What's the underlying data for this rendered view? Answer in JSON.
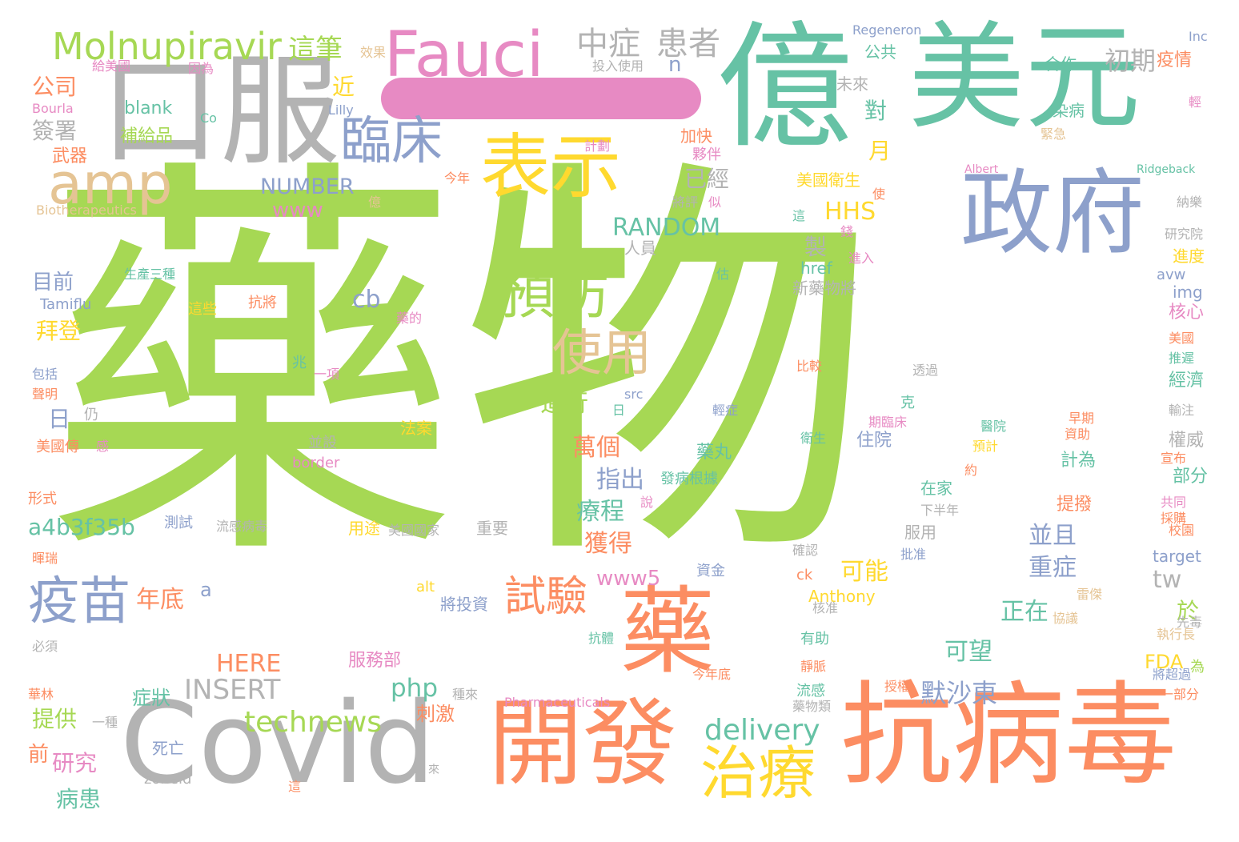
{
  "palette": {
    "green": "#a6d854",
    "teal": "#66c2a5",
    "orange": "#fc8d62",
    "blue": "#8da0cb",
    "pink": "#e78ac3",
    "yellow": "#ffd92f",
    "tan": "#e5c494",
    "gray": "#b3b3b3"
  },
  "dash": {
    "text": "",
    "color": "#e78ac3"
  },
  "words": [
    {
      "text": "藥物",
      "color": "#a6d854"
    },
    {
      "text": "億",
      "color": "#66c2a5"
    },
    {
      "text": "美元",
      "color": "#66c2a5"
    },
    {
      "text": "口服",
      "color": "#b3b3b3"
    },
    {
      "text": "Covid",
      "color": "#b3b3b3"
    },
    {
      "text": "抗病毒",
      "color": "#fc8d62"
    },
    {
      "text": "開發",
      "color": "#fc8d62"
    },
    {
      "text": "藥",
      "color": "#fc8d62"
    },
    {
      "text": "政府",
      "color": "#8da0cb"
    },
    {
      "text": "表示",
      "color": "#ffd92f"
    },
    {
      "text": "Fauci",
      "color": "#e78ac3"
    },
    {
      "text": "amp",
      "color": "#e5c494"
    },
    {
      "text": "Molnupiravir",
      "color": "#a6d854"
    },
    {
      "text": "臨床",
      "color": "#8da0cb"
    },
    {
      "text": "預防",
      "color": "#a6d854"
    },
    {
      "text": "治療",
      "color": "#ffd92f"
    },
    {
      "text": "疫苗",
      "color": "#8da0cb"
    },
    {
      "text": "使用",
      "color": "#e5c494"
    },
    {
      "text": "試驗",
      "color": "#fc8d62"
    },
    {
      "text": "中症",
      "color": "#b3b3b3"
    },
    {
      "text": "患者",
      "color": "#b3b3b3"
    },
    {
      "text": "technews",
      "color": "#a6d854"
    },
    {
      "text": "delivery",
      "color": "#66c2a5"
    },
    {
      "text": "INSERT",
      "color": "#b3b3b3"
    },
    {
      "text": "RANDOM",
      "color": "#66c2a5"
    },
    {
      "text": "NUMBER",
      "color": "#8da0cb"
    },
    {
      "text": "HHS",
      "color": "#ffd92f"
    },
    {
      "text": "a4b3f35b",
      "color": "#66c2a5"
    },
    {
      "text": "www5",
      "color": "#e78ac3"
    },
    {
      "text": "www",
      "color": "#e78ac3"
    },
    {
      "text": "php",
      "color": "#66c2a5"
    },
    {
      "text": "HERE",
      "color": "#fc8d62"
    },
    {
      "text": "FDA",
      "color": "#ffd92f"
    },
    {
      "text": "默沙東",
      "color": "#8da0cb"
    },
    {
      "text": "這筆",
      "color": "#a6d854"
    },
    {
      "text": "初期",
      "color": "#b3b3b3"
    },
    {
      "text": "疫情",
      "color": "#fc8d62"
    },
    {
      "text": "公司",
      "color": "#fc8d62"
    },
    {
      "text": "簽署",
      "color": "#b3b3b3"
    },
    {
      "text": "武器",
      "color": "#fc8d62"
    },
    {
      "text": "blank",
      "color": "#66c2a5"
    },
    {
      "text": "補給品",
      "color": "#a6d854"
    },
    {
      "text": "目前",
      "color": "#8da0cb"
    },
    {
      "text": "拜登",
      "color": "#ffd92f"
    },
    {
      "text": "日",
      "color": "#8da0cb"
    },
    {
      "text": "cb",
      "color": "#8da0cb"
    },
    {
      "text": "進行",
      "color": "#a6d854"
    },
    {
      "text": "萬個",
      "color": "#fc8d62"
    },
    {
      "text": "指出",
      "color": "#8da0cb"
    },
    {
      "text": "療程",
      "color": "#66c2a5"
    },
    {
      "text": "獲得",
      "color": "#fc8d62"
    },
    {
      "text": "年底",
      "color": "#fc8d62"
    },
    {
      "text": "可能",
      "color": "#ffd92f"
    },
    {
      "text": "並且",
      "color": "#8da0cb"
    },
    {
      "text": "重症",
      "color": "#8da0cb"
    },
    {
      "text": "正在",
      "color": "#66c2a5"
    },
    {
      "text": "可望",
      "color": "#66c2a5"
    },
    {
      "text": "tw",
      "color": "#b3b3b3"
    },
    {
      "text": "於",
      "color": "#a6d854"
    },
    {
      "text": "已經",
      "color": "#b3b3b3"
    },
    {
      "text": "月",
      "color": "#ffd92f"
    },
    {
      "text": "對",
      "color": "#66c2a5"
    },
    {
      "text": "製",
      "color": "#b3b3b3"
    },
    {
      "text": "提供",
      "color": "#a6d854"
    },
    {
      "text": "研究",
      "color": "#e78ac3"
    },
    {
      "text": "病患",
      "color": "#66c2a5"
    },
    {
      "text": "前",
      "color": "#fc8d62"
    },
    {
      "text": "症狀",
      "color": "#66c2a5"
    },
    {
      "text": "刺激",
      "color": "#fc8d62"
    },
    {
      "text": "服務部",
      "color": "#e78ac3"
    },
    {
      "text": "藥丸",
      "color": "#66c2a5"
    },
    {
      "text": "住院",
      "color": "#8da0cb"
    },
    {
      "text": "計為",
      "color": "#66c2a5"
    },
    {
      "text": "部分",
      "color": "#66c2a5"
    },
    {
      "text": "權威",
      "color": "#b3b3b3"
    },
    {
      "text": "經濟",
      "color": "#66c2a5"
    },
    {
      "text": "核心",
      "color": "#e78ac3"
    },
    {
      "text": "進度",
      "color": "#ffd92f"
    },
    {
      "text": "img",
      "color": "#8da0cb"
    },
    {
      "text": "avw",
      "color": "#8da0cb"
    },
    {
      "text": "target",
      "color": "#8da0cb"
    },
    {
      "text": "Anthony",
      "color": "#ffd92f"
    },
    {
      "text": "href",
      "color": "#66c2a5"
    },
    {
      "text": "新藥物將",
      "color": "#b3b3b3"
    },
    {
      "text": "美國衛生",
      "color": "#ffd92f"
    },
    {
      "text": "人員",
      "color": "#b3b3b3"
    },
    {
      "text": "公共",
      "color": "#66c2a5"
    },
    {
      "text": "未來",
      "color": "#b3b3b3"
    },
    {
      "text": "合作",
      "color": "#66c2a5"
    },
    {
      "text": "染病",
      "color": "#66c2a5"
    },
    {
      "text": "加快",
      "color": "#fc8d62"
    },
    {
      "text": "夥伴",
      "color": "#e78ac3"
    },
    {
      "text": "近",
      "color": "#ffd92f"
    },
    {
      "text": "n",
      "color": "#8da0cb"
    },
    {
      "text": "投入使用",
      "color": "#b3b3b3"
    },
    {
      "text": "Regeneron",
      "color": "#8da0cb"
    },
    {
      "text": "Inc",
      "color": "#8da0cb"
    },
    {
      "text": "效果",
      "color": "#e5c494"
    },
    {
      "text": "給美國",
      "color": "#e78ac3"
    },
    {
      "text": "因為",
      "color": "#e78ac3"
    },
    {
      "text": "Bourla",
      "color": "#e78ac3"
    },
    {
      "text": "Co",
      "color": "#66c2a5"
    },
    {
      "text": "Lilly",
      "color": "#8da0cb"
    },
    {
      "text": "計劃",
      "color": "#e78ac3"
    },
    {
      "text": "緊急",
      "color": "#e5c494"
    },
    {
      "text": "輕",
      "color": "#e78ac3"
    },
    {
      "text": "Biotherapeutics",
      "color": "#e5c494"
    },
    {
      "text": "今年",
      "color": "#fc8d62"
    },
    {
      "text": "Albert",
      "color": "#e78ac3"
    },
    {
      "text": "Ridgeback",
      "color": "#66c2a5"
    },
    {
      "text": "將評",
      "color": "#b3b3b3"
    },
    {
      "text": "似",
      "color": "#e78ac3"
    },
    {
      "text": "億",
      "color": "#e5c494"
    },
    {
      "text": "這",
      "color": "#66c2a5"
    },
    {
      "text": "錢",
      "color": "#e78ac3"
    },
    {
      "text": "使",
      "color": "#fc8d62"
    },
    {
      "text": "研究院",
      "color": "#b3b3b3"
    },
    {
      "text": "納樂",
      "color": "#b3b3b3"
    },
    {
      "text": "進入",
      "color": "#e78ac3"
    },
    {
      "text": "生產三種",
      "color": "#66c2a5"
    },
    {
      "text": "估",
      "color": "#66c2a5"
    },
    {
      "text": "Tamiflu",
      "color": "#8da0cb"
    },
    {
      "text": "抗將",
      "color": "#fc8d62"
    },
    {
      "text": "這些",
      "color": "#ffd92f"
    },
    {
      "text": "藥的",
      "color": "#e78ac3"
    },
    {
      "text": "包括",
      "color": "#8da0cb"
    },
    {
      "text": "兆",
      "color": "#66c2a5"
    },
    {
      "text": "一項",
      "color": "#e78ac3"
    },
    {
      "text": "比較",
      "color": "#fc8d62"
    },
    {
      "text": "透過",
      "color": "#b3b3b3"
    },
    {
      "text": "美國",
      "color": "#fc8d62"
    },
    {
      "text": "推遲",
      "color": "#66c2a5"
    },
    {
      "text": "聲明",
      "color": "#fc8d62"
    },
    {
      "text": "仍",
      "color": "#b3b3b3"
    },
    {
      "text": "src",
      "color": "#8da0cb"
    },
    {
      "text": "日",
      "color": "#66c2a5"
    },
    {
      "text": "輕症",
      "color": "#8da0cb"
    },
    {
      "text": "克",
      "color": "#66c2a5"
    },
    {
      "text": "期臨床",
      "color": "#e78ac3"
    },
    {
      "text": "醫院",
      "color": "#66c2a5"
    },
    {
      "text": "早期",
      "color": "#fc8d62"
    },
    {
      "text": "輸注",
      "color": "#b3b3b3"
    },
    {
      "text": "資助",
      "color": "#fc8d62"
    },
    {
      "text": "美國傳",
      "color": "#fc8d62"
    },
    {
      "text": "感",
      "color": "#e78ac3"
    },
    {
      "text": "法案",
      "color": "#ffd92f"
    },
    {
      "text": "並設",
      "color": "#b3b3b3"
    },
    {
      "text": "border",
      "color": "#e78ac3"
    },
    {
      "text": "衛生",
      "color": "#66c2a5"
    },
    {
      "text": "預計",
      "color": "#ffd92f"
    },
    {
      "text": "宣布",
      "color": "#fc8d62"
    },
    {
      "text": "約",
      "color": "#fc8d62"
    },
    {
      "text": "形式",
      "color": "#fc8d62"
    },
    {
      "text": "測試",
      "color": "#8da0cb"
    },
    {
      "text": "流感病毒",
      "color": "#b3b3b3"
    },
    {
      "text": "發病根據",
      "color": "#66c2a5"
    },
    {
      "text": "說",
      "color": "#e78ac3"
    },
    {
      "text": "在家",
      "color": "#66c2a5"
    },
    {
      "text": "提撥",
      "color": "#fc8d62"
    },
    {
      "text": "共同",
      "color": "#e78ac3"
    },
    {
      "text": "採購",
      "color": "#fc8d62"
    },
    {
      "text": "用途",
      "color": "#ffd92f"
    },
    {
      "text": "美國國家",
      "color": "#b3b3b3"
    },
    {
      "text": "重要",
      "color": "#b3b3b3"
    },
    {
      "text": "下半年",
      "color": "#b3b3b3"
    },
    {
      "text": "服用",
      "color": "#b3b3b3"
    },
    {
      "text": "暉瑞",
      "color": "#fc8d62"
    },
    {
      "text": "確認",
      "color": "#b3b3b3"
    },
    {
      "text": "批准",
      "color": "#8da0cb"
    },
    {
      "text": "校園",
      "color": "#fc8d62"
    },
    {
      "text": "資金",
      "color": "#8da0cb"
    },
    {
      "text": "a",
      "color": "#8da0cb"
    },
    {
      "text": "ck",
      "color": "#fc8d62"
    },
    {
      "text": "alt",
      "color": "#ffd92f"
    },
    {
      "text": "將投資",
      "color": "#8da0cb"
    },
    {
      "text": "核准",
      "color": "#b3b3b3"
    },
    {
      "text": "雷傑",
      "color": "#e5c494"
    },
    {
      "text": "協議",
      "color": "#e5c494"
    },
    {
      "text": "先毒",
      "color": "#b3b3b3"
    },
    {
      "text": "執行長",
      "color": "#e5c494"
    },
    {
      "text": "必須",
      "color": "#b3b3b3"
    },
    {
      "text": "抗體",
      "color": "#66c2a5"
    },
    {
      "text": "有助",
      "color": "#66c2a5"
    },
    {
      "text": "靜脈",
      "color": "#fc8d62"
    },
    {
      "text": "為",
      "color": "#a6d854"
    },
    {
      "text": "華林",
      "color": "#fc8d62"
    },
    {
      "text": "流感",
      "color": "#66c2a5"
    },
    {
      "text": "藥物類",
      "color": "#b3b3b3"
    },
    {
      "text": "授權",
      "color": "#fc8d62"
    },
    {
      "text": "將超過",
      "color": "#8da0cb"
    },
    {
      "text": "一部分",
      "color": "#fc8d62"
    },
    {
      "text": "今年底",
      "color": "#fc8d62"
    },
    {
      "text": "種來",
      "color": "#b3b3b3"
    },
    {
      "text": "Pharmaceuticals",
      "color": "#e78ac3"
    },
    {
      "text": "一種",
      "color": "#b3b3b3"
    },
    {
      "text": "死亡",
      "color": "#8da0cb"
    },
    {
      "text": "zoneid",
      "color": "#b3b3b3"
    },
    {
      "text": "這",
      "color": "#fc8d62"
    },
    {
      "text": "來",
      "color": "#b3b3b3"
    }
  ]
}
